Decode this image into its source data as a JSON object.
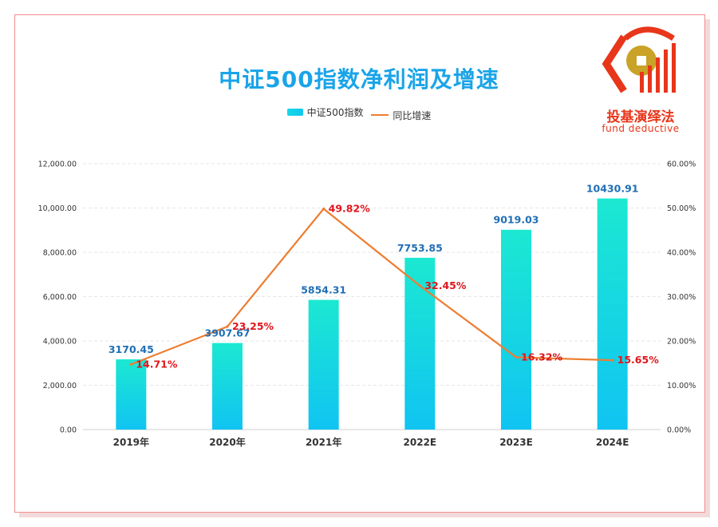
{
  "chart_data": {
    "type": "bar",
    "title": "中证500指数净利润及增速",
    "categories": [
      "2019年",
      "2020年",
      "2021年",
      "2022E",
      "2023E",
      "2024E"
    ],
    "series": [
      {
        "name": "中证500指数",
        "type": "bar",
        "axis": "left",
        "values": [
          3170.45,
          3907.67,
          5854.31,
          7753.85,
          9019.03,
          10430.91
        ],
        "labels": [
          "3170.45",
          "3907.67",
          "5854.31",
          "7753.85",
          "9019.03",
          "10430.91"
        ],
        "color": "#11cde8"
      },
      {
        "name": "同比增速",
        "type": "line",
        "axis": "right",
        "values": [
          14.71,
          23.25,
          49.82,
          32.45,
          16.32,
          15.65
        ],
        "labels": [
          "14.71%",
          "23.25%",
          "49.82%",
          "32.45%",
          "16.32%",
          "15.65%"
        ],
        "color": "#ed7d31"
      }
    ],
    "y_left": {
      "ylim": [
        0,
        12000
      ],
      "ticks": [
        0,
        2000,
        4000,
        6000,
        8000,
        10000,
        12000
      ],
      "tick_labels": [
        "0.00",
        "2,000.00",
        "4,000.00",
        "6,000.00",
        "8,000.00",
        "10,000.00",
        "12,000.00"
      ]
    },
    "y_right": {
      "ylim": [
        0,
        60
      ],
      "ticks": [
        0,
        10,
        20,
        30,
        40,
        50,
        60
      ],
      "tick_labels": [
        "0.00%",
        "10.00%",
        "20.00%",
        "30.00%",
        "40.00%",
        "50.00%",
        "60.00%"
      ]
    },
    "grid": true,
    "legend": "top-center",
    "label_color_bar": "#1f6fb5",
    "label_color_line": "#e0151b"
  },
  "brand": {
    "name_cn": "投基演绎法",
    "name_en": "fund deductive",
    "color": "#e8361a",
    "accent": "#c9a227"
  }
}
